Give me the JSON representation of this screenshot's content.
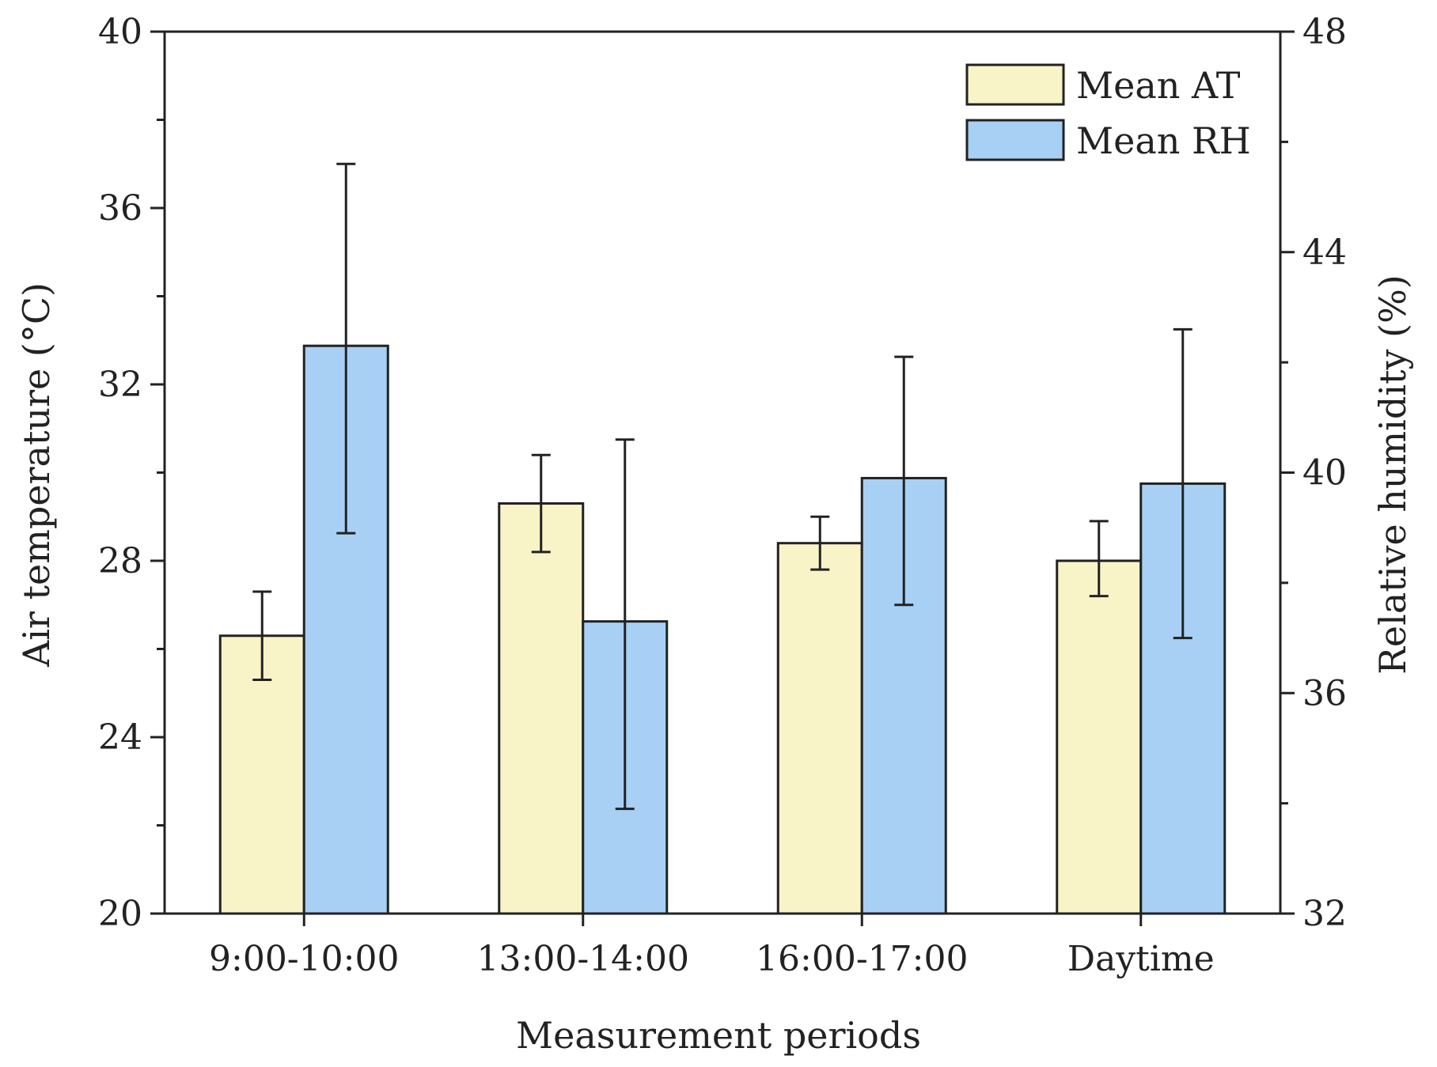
{
  "chart_data": {
    "type": "bar",
    "title": "",
    "xlabel": "Measurement periods",
    "ylabel": "Air temperature (°C)",
    "y2label": "Relative humidity (%)",
    "categories": [
      "9:00-10:00",
      "13:00-14:00",
      "16:00-17:00",
      "Daytime"
    ],
    "ylim": [
      20,
      40
    ],
    "y2lim": [
      32,
      48
    ],
    "yticks": [
      20,
      24,
      28,
      32,
      36,
      40
    ],
    "y2ticks": [
      32,
      36,
      40,
      44,
      48
    ],
    "legend_position": "top-right",
    "grid": false,
    "series": [
      {
        "name": "Mean AT",
        "axis": "left",
        "color": "#f8f4c8",
        "values": [
          26.3,
          29.3,
          28.4,
          28.0
        ],
        "error_low": [
          25.3,
          28.2,
          27.8,
          27.2
        ],
        "error_high": [
          27.3,
          30.4,
          29.0,
          28.9
        ]
      },
      {
        "name": "Mean RH",
        "axis": "right",
        "color": "#a8d0f4",
        "values": [
          42.3,
          37.3,
          39.9,
          39.8
        ],
        "error_low": [
          38.9,
          33.9,
          37.6,
          37.0
        ],
        "error_high": [
          45.6,
          40.6,
          42.1,
          42.6
        ]
      }
    ]
  }
}
